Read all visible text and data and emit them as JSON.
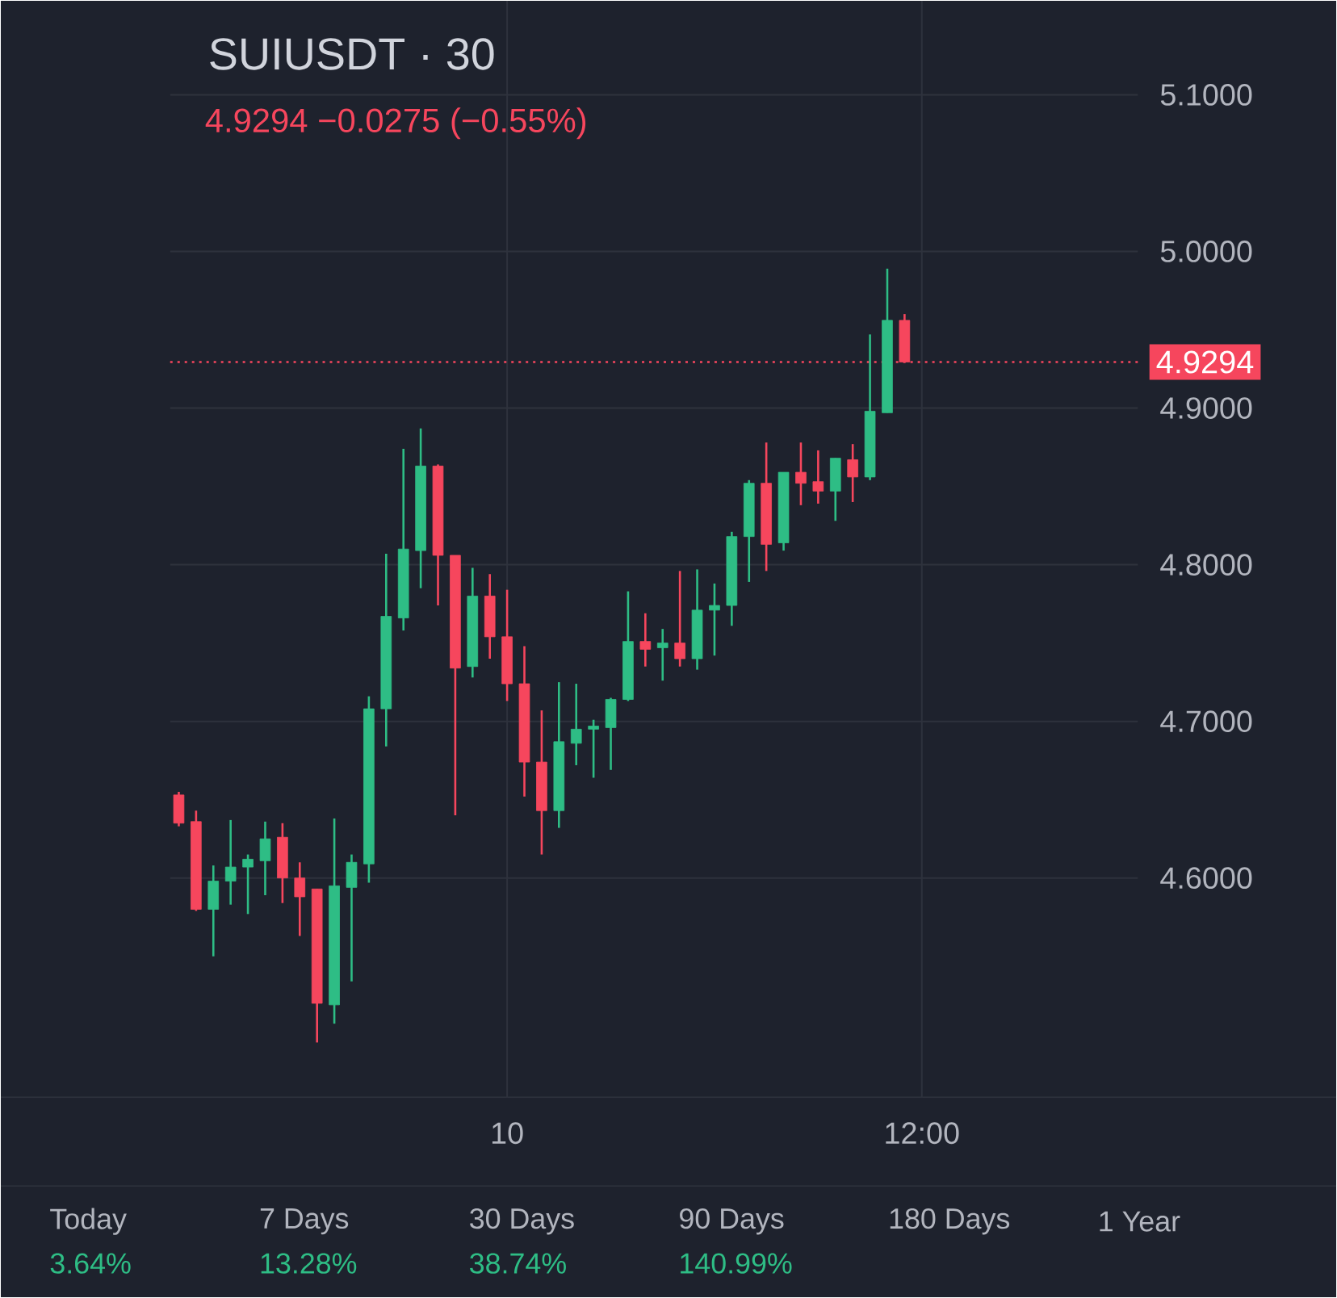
{
  "chart_data": {
    "type": "candlestick",
    "title": "SUIUSDT · 30",
    "subtitle": "4.9294 −0.0275 (−0.55%)",
    "categories": [
      null,
      null,
      null,
      null,
      null,
      null,
      null,
      null,
      null,
      null,
      null,
      null,
      null,
      null,
      null,
      null,
      null,
      null,
      null,
      "10",
      null,
      null,
      null,
      null,
      null,
      null,
      null,
      null,
      null,
      null,
      null,
      null,
      null,
      null,
      null,
      null,
      null,
      null,
      null,
      null,
      null,
      null,
      null,
      "12:00",
      null,
      null,
      null,
      null,
      null,
      null,
      null,
      null,
      null,
      null,
      null,
      null
    ],
    "ohlc": [
      [
        4.653,
        4.655,
        4.633,
        4.635
      ],
      [
        4.636,
        4.643,
        4.579,
        4.58
      ],
      [
        4.58,
        4.608,
        4.55,
        4.598
      ],
      [
        4.598,
        4.637,
        4.583,
        4.607
      ],
      [
        4.607,
        4.615,
        4.577,
        4.612
      ],
      [
        4.611,
        4.636,
        4.589,
        4.625
      ],
      [
        4.626,
        4.635,
        4.584,
        4.6
      ],
      [
        4.6,
        4.61,
        4.563,
        4.588
      ],
      [
        4.593,
        4.593,
        4.495,
        4.52
      ],
      [
        4.519,
        4.638,
        4.507,
        4.595
      ],
      [
        4.594,
        4.615,
        4.534,
        4.61
      ],
      [
        4.609,
        4.716,
        4.597,
        4.708
      ],
      [
        4.708,
        4.807,
        4.684,
        4.767
      ],
      [
        4.766,
        4.874,
        4.758,
        4.81
      ],
      [
        4.809,
        4.887,
        4.785,
        4.863
      ],
      [
        4.863,
        4.864,
        4.774,
        4.806
      ],
      [
        4.806,
        4.806,
        4.64,
        4.734
      ],
      [
        4.735,
        4.798,
        4.728,
        4.78
      ],
      [
        4.78,
        4.794,
        4.74,
        4.754
      ],
      [
        4.754,
        4.784,
        4.713,
        4.724
      ],
      [
        4.724,
        4.748,
        4.652,
        4.674
      ],
      [
        4.674,
        4.707,
        4.615,
        4.643
      ],
      [
        4.643,
        4.725,
        4.632,
        4.687
      ],
      [
        4.686,
        4.724,
        4.672,
        4.695
      ],
      [
        4.695,
        4.701,
        4.664,
        4.697
      ],
      [
        4.696,
        4.715,
        4.669,
        4.714
      ],
      [
        4.714,
        4.783,
        4.713,
        4.751
      ],
      [
        4.751,
        4.769,
        4.735,
        4.746
      ],
      [
        4.747,
        4.759,
        4.726,
        4.75
      ],
      [
        4.75,
        4.796,
        4.735,
        4.74
      ],
      [
        4.74,
        4.797,
        4.733,
        4.771
      ],
      [
        4.771,
        4.788,
        4.742,
        4.774
      ],
      [
        4.774,
        4.821,
        4.761,
        4.818
      ],
      [
        4.818,
        4.854,
        4.789,
        4.852
      ],
      [
        4.852,
        4.878,
        4.796,
        4.813
      ],
      [
        4.814,
        4.859,
        4.809,
        4.859
      ],
      [
        4.859,
        4.878,
        4.838,
        4.852
      ],
      [
        4.853,
        4.873,
        4.839,
        4.847
      ],
      [
        4.847,
        4.868,
        4.828,
        4.868
      ],
      [
        4.867,
        4.877,
        4.84,
        4.856
      ],
      [
        4.856,
        4.947,
        4.854,
        4.898
      ],
      [
        4.897,
        4.989,
        4.897,
        4.956
      ],
      [
        4.956,
        4.96,
        4.9294,
        4.9294
      ],
      null,
      null,
      null,
      null,
      null,
      null,
      null,
      null,
      null,
      null,
      null,
      null,
      null
    ],
    "colors": [
      "#f6465d",
      "#f6465d",
      "#2ebd85",
      "#2ebd85",
      "#2ebd85",
      "#2ebd85",
      "#f6465d",
      "#f6465d",
      "#f6465d",
      "#2ebd85",
      "#2ebd85",
      "#2ebd85",
      "#2ebd85",
      "#2ebd85",
      "#2ebd85",
      "#f6465d",
      "#f6465d",
      "#2ebd85",
      "#f6465d",
      "#f6465d",
      "#f6465d",
      "#f6465d",
      "#2ebd85",
      "#2ebd85",
      "#2ebd85",
      "#2ebd85",
      "#2ebd85",
      "#f6465d",
      "#2ebd85",
      "#f6465d",
      "#2ebd85",
      "#2ebd85",
      "#2ebd85",
      "#2ebd85",
      "#f6465d",
      "#2ebd85",
      "#f6465d",
      "#f6465d",
      "#2ebd85",
      "#f6465d",
      "#2ebd85",
      "#2ebd85",
      "#f6465d",
      null,
      null,
      null,
      null,
      null,
      null,
      null,
      null,
      null,
      null,
      null,
      null,
      null
    ],
    "ylim": [
      4.46,
      5.16
    ],
    "yticks": [
      {
        "value": 4.6,
        "label": "4.6000"
      },
      {
        "value": 4.7,
        "label": "4.7000"
      },
      {
        "value": 4.8,
        "label": "4.8000"
      },
      {
        "value": 4.9,
        "label": "4.9000"
      },
      {
        "value": 5.0,
        "label": "5.0000"
      },
      {
        "value": 5.1,
        "label": "5.1000"
      }
    ],
    "grid": true,
    "ref_lines": [
      {
        "axis": "y",
        "value": 4.9294,
        "label": "4.9294",
        "color": "#f6465d",
        "line_style": "dotted"
      }
    ],
    "annotations": [
      "Today",
      "3.64%",
      "7 Days",
      "13.28%",
      "30 Days",
      "38.74%",
      "90 Days",
      "140.99%",
      "180 Days",
      "1 Year"
    ]
  }
}
